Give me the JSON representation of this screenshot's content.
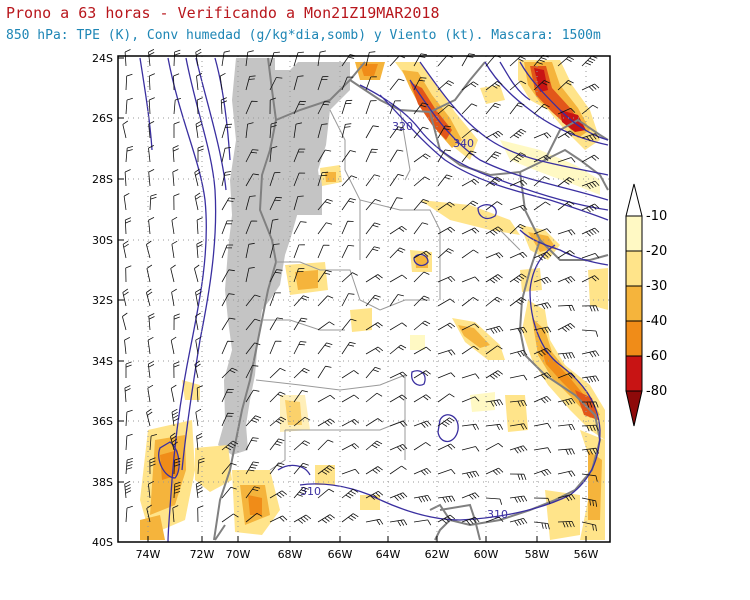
{
  "title": "Prono a 63 horas - Verificando a Mon21Z19MAR2018",
  "subtitle": "850 hPa: TPE (K), Conv humedad (g/kg*dia,somb) y Viento (kt). Mascara: 1500m",
  "lat_labels": [
    "24S",
    "26S",
    "28S",
    "30S",
    "32S",
    "34S",
    "36S",
    "38S",
    "40S"
  ],
  "lon_labels": [
    "74W",
    "72W",
    "70W",
    "68W",
    "66W",
    "64W",
    "62W",
    "60W",
    "58W",
    "56W"
  ],
  "colorbar": {
    "labels": [
      "-10",
      "-20",
      "-30",
      "-40",
      "-60",
      "-80"
    ],
    "colors": [
      "#fff9c4",
      "#ffe48a",
      "#f5b43c",
      "#f08c18",
      "#e2561a",
      "#c81414",
      "#8e0a0a"
    ]
  },
  "contour_labels": [
    "320",
    "340",
    "310",
    "310"
  ],
  "colors": {
    "contour": "#3a2fa0",
    "mask": "#c4c4c4",
    "border": "#808080",
    "title": "#b8161c",
    "subtitle": "#1e86b5"
  }
}
